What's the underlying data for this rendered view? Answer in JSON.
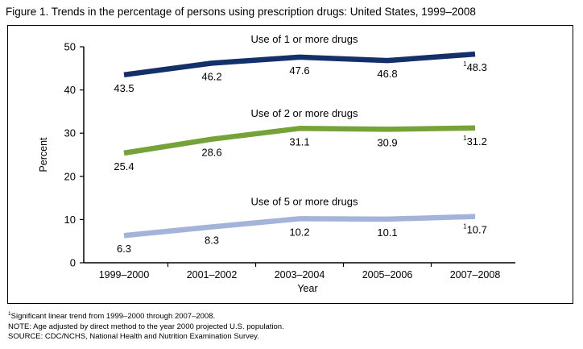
{
  "figure": {
    "title": "Figure 1. Trends in the percentage of persons using prescription drugs: United States, 1999–2008"
  },
  "chart_data": {
    "type": "line",
    "xlabel": "Year",
    "ylabel": "Percent",
    "ylim": [
      0,
      50
    ],
    "yticks": [
      0,
      10,
      20,
      30,
      40,
      50
    ],
    "categories": [
      "1999–2000",
      "2001–2002",
      "2003–2004",
      "2005–2006",
      "2007–2008"
    ],
    "grid": false,
    "series": [
      {
        "name": "Use of 1 or more drugs",
        "color": "#14306a",
        "values": [
          43.5,
          46.2,
          47.6,
          46.8,
          48.3
        ],
        "labels": [
          "43.5",
          "46.2",
          "47.6",
          "46.8",
          "48.3"
        ],
        "label_position": "below"
      },
      {
        "name": "Use of 2 or more drugs",
        "color": "#76a23a",
        "values": [
          25.4,
          28.6,
          31.1,
          30.9,
          31.2
        ],
        "labels": [
          "25.4",
          "28.6",
          "31.1",
          "30.9",
          "31.2"
        ],
        "label_position": "below"
      },
      {
        "name": "Use of 5 or more drugs",
        "color": "#a3b3da",
        "values": [
          6.3,
          8.3,
          10.2,
          10.1,
          10.7
        ],
        "labels": [
          "6.3",
          "8.3",
          "10.2",
          "10.1",
          "10.7"
        ],
        "label_position": "below"
      }
    ],
    "significance_marker": "1",
    "significance_marker_index": 4
  },
  "notes": {
    "footnote_marker": "1",
    "footnote": "Significant linear trend from 1999–2000 through 2007–2008.",
    "note": "NOTE: Age adjusted by direct method to the year 2000 projected U.S. population.",
    "source": "SOURCE: CDC/NCHS, National Health and Nutrition Examination Survey."
  }
}
